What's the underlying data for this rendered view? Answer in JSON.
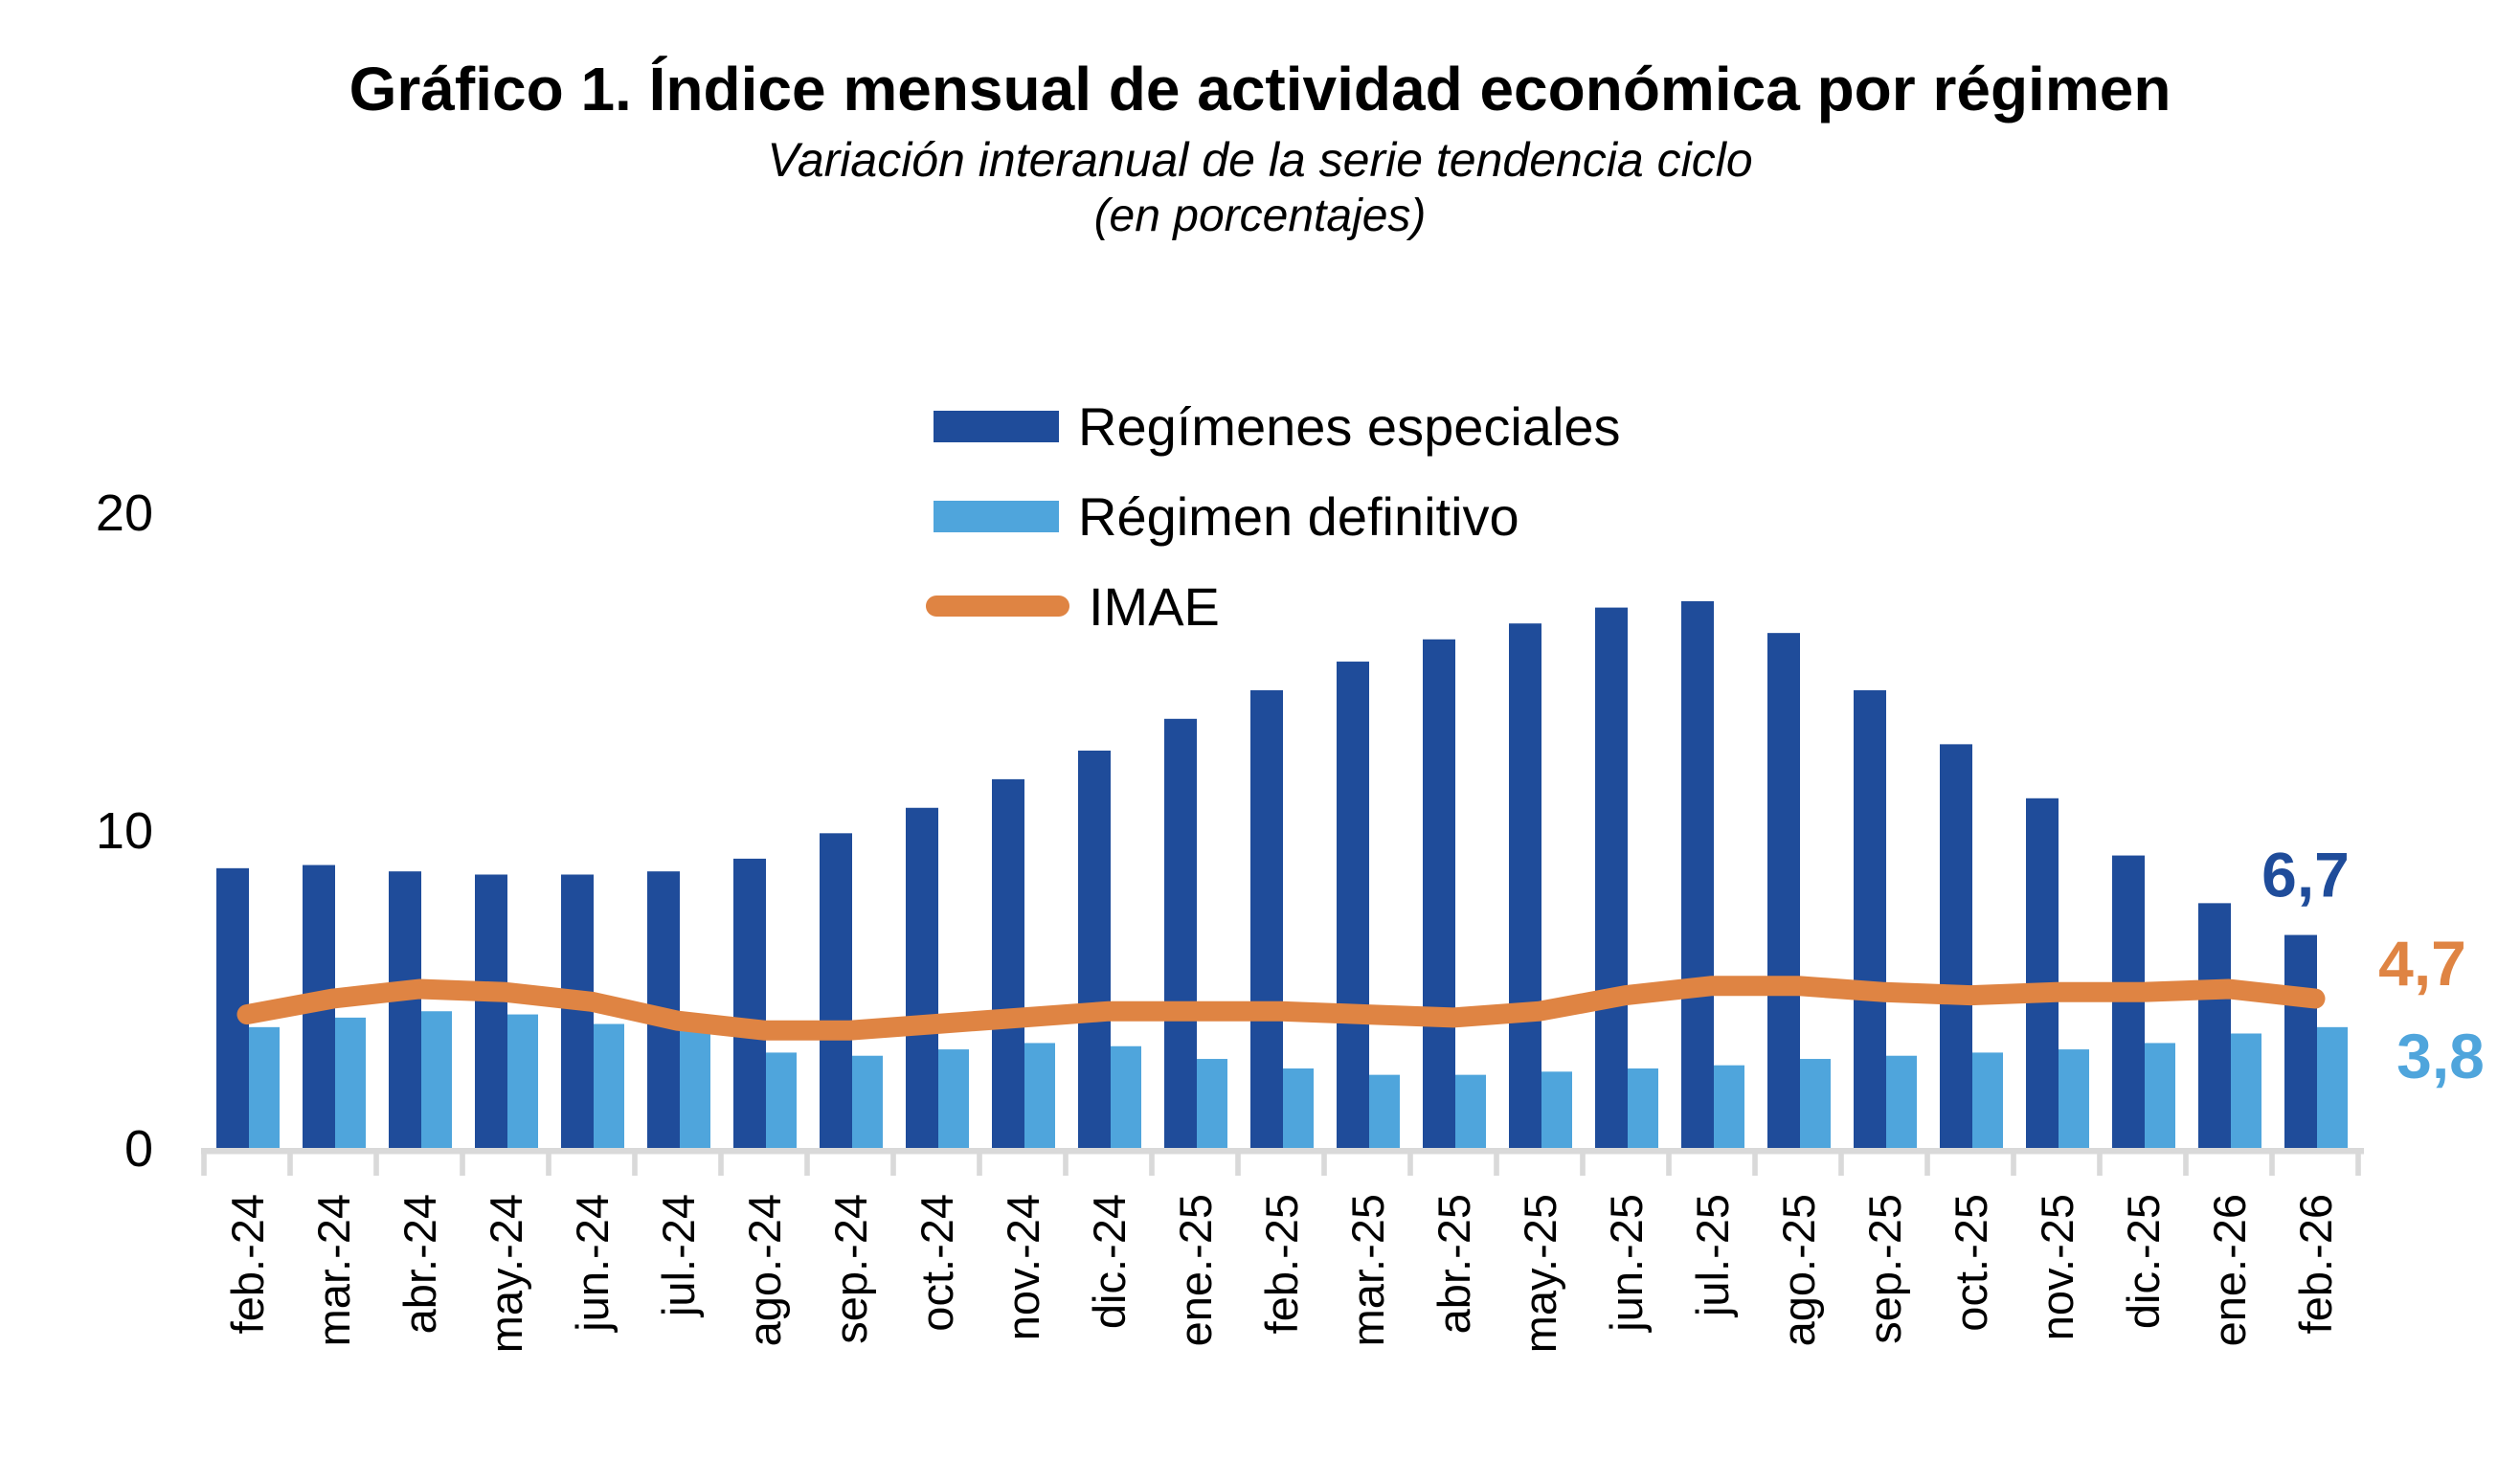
{
  "title": "Gráfico 1. Índice mensual de actividad económica por régimen",
  "subtitle": "Variación interanual de la serie tendencia ciclo",
  "subtitle_units": "(en porcentajes)",
  "colors": {
    "especiales": "#1f4c9a",
    "definitivo": "#4fa5dc",
    "imae": "#df8443",
    "axis": "#d9d9d9",
    "text": "#000000"
  },
  "legend": {
    "items": [
      {
        "id": "especiales",
        "label": "Regímenes especiales",
        "marker": "rect",
        "color": "#1f4c9a"
      },
      {
        "id": "definitivo",
        "label": "Régimen definitivo",
        "marker": "rect",
        "color": "#4fa5dc"
      },
      {
        "id": "imae",
        "label": "IMAE",
        "marker": "line",
        "color": "#df8443"
      }
    ]
  },
  "chart_data": {
    "type": "bar",
    "subtype": "grouped bars with overlaid line",
    "categories": [
      "feb.-24",
      "mar.-24",
      "abr.-24",
      "may.-24",
      "jun.-24",
      "jul.-24",
      "ago.-24",
      "sep.-24",
      "oct.-24",
      "nov.-24",
      "dic.-24",
      "ene.-25",
      "feb.-25",
      "mar.-25",
      "abr.-25",
      "may.-25",
      "jun.-25",
      "jul.-25",
      "ago.-25",
      "sep.-25",
      "oct.-25",
      "nov.-25",
      "dic.-25",
      "ene.-26",
      "feb.-26"
    ],
    "series": [
      {
        "name": "Regímenes especiales",
        "type": "bar",
        "color": "#1f4c9a",
        "values": [
          8.8,
          8.9,
          8.7,
          8.6,
          8.6,
          8.7,
          9.1,
          9.9,
          10.7,
          11.6,
          12.5,
          13.5,
          14.4,
          15.3,
          16.0,
          16.5,
          17.0,
          17.2,
          16.2,
          14.4,
          12.7,
          11.0,
          9.2,
          7.7,
          6.7
        ]
      },
      {
        "name": "Régimen definitivo",
        "type": "bar",
        "color": "#4fa5dc",
        "values": [
          3.8,
          4.1,
          4.3,
          4.2,
          3.9,
          3.8,
          3.0,
          2.9,
          3.1,
          3.3,
          3.2,
          2.8,
          2.5,
          2.3,
          2.3,
          2.4,
          2.5,
          2.6,
          2.8,
          2.9,
          3.0,
          3.1,
          3.3,
          3.6,
          3.8
        ]
      },
      {
        "name": "IMAE",
        "type": "line",
        "color": "#df8443",
        "values": [
          4.2,
          4.7,
          5.0,
          4.9,
          4.6,
          4.0,
          3.7,
          3.7,
          3.9,
          4.1,
          4.3,
          4.3,
          4.3,
          4.2,
          4.1,
          4.3,
          4.8,
          5.1,
          5.1,
          4.9,
          4.8,
          4.9,
          4.9,
          5.0,
          4.7
        ]
      }
    ],
    "title": "Gráfico 1. Índice mensual de actividad económica por régimen",
    "xlabel": "",
    "ylabel": "",
    "ylim": [
      0,
      20
    ],
    "yticks": [
      0,
      10,
      20
    ],
    "gridlines": false,
    "legend_position": "top-center",
    "end_labels": [
      {
        "text": "6,7",
        "series": "Regímenes especiales",
        "value": 6.7,
        "color": "#1f4c9a"
      },
      {
        "text": "4,7",
        "series": "IMAE",
        "value": 4.7,
        "color": "#df8443"
      },
      {
        "text": "3,8",
        "series": "Régimen definitivo",
        "value": 3.8,
        "color": "#4fa5dc"
      }
    ]
  }
}
